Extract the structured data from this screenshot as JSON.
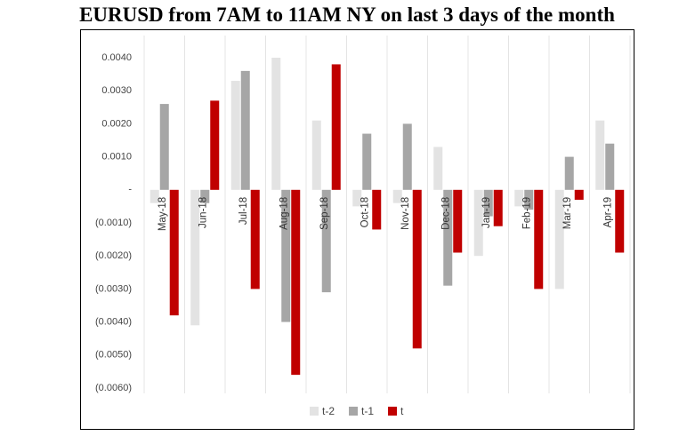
{
  "chart_data": {
    "type": "bar",
    "title": "EURUSD from 7AM to 11AM NY on last 3 days of the month",
    "categories": [
      "May-18",
      "Jun-18",
      "Jul-18",
      "Aug-18",
      "Sep-18",
      "Oct-18",
      "Nov-18",
      "Dec-18",
      "Jan-19",
      "Feb-19",
      "Mar-19",
      "Apr-19"
    ],
    "series": [
      {
        "name": "t-2",
        "color": "#e3e3e3",
        "values": [
          -0.0004,
          -0.0041,
          0.0033,
          0.004,
          0.0021,
          -0.0005,
          -0.0004,
          0.0013,
          -0.002,
          -0.0005,
          -0.003,
          0.0021
        ]
      },
      {
        "name": "t-1",
        "color": "#a6a6a6",
        "values": [
          0.0026,
          -0.0004,
          0.0036,
          -0.004,
          -0.0031,
          0.0017,
          0.002,
          -0.0029,
          -0.0008,
          -0.0006,
          0.001,
          0.0014
        ]
      },
      {
        "name": "t",
        "color": "#c00000",
        "values": [
          -0.0038,
          0.0027,
          -0.003,
          -0.0056,
          0.0038,
          -0.0012,
          -0.0048,
          -0.0019,
          -0.0011,
          -0.003,
          -0.0003,
          -0.0019
        ]
      }
    ],
    "ylim": [
      -0.006,
      0.004
    ],
    "yticks": [
      {
        "value": 0.004,
        "label": "0.0040"
      },
      {
        "value": 0.003,
        "label": "0.0030"
      },
      {
        "value": 0.002,
        "label": "0.0020"
      },
      {
        "value": 0.001,
        "label": "0.0010"
      },
      {
        "value": 0,
        "label": "-"
      },
      {
        "value": -0.001,
        "label": "(0.0010)"
      },
      {
        "value": -0.002,
        "label": "(0.0020)"
      },
      {
        "value": -0.003,
        "label": "(0.0030)"
      },
      {
        "value": -0.004,
        "label": "(0.0040)"
      },
      {
        "value": -0.005,
        "label": "(0.0050)"
      },
      {
        "value": -0.006,
        "label": "(0.0060)"
      }
    ],
    "legend": "bottom"
  }
}
